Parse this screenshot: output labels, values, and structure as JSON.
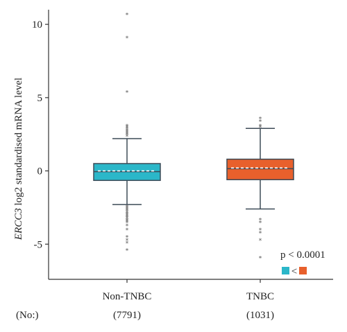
{
  "chart_data": {
    "type": "box",
    "title": "",
    "ylabel_italic": "ERCC3",
    "ylabel_rest": " log2 standardised mRNA level",
    "ylim": [
      -7.4,
      11
    ],
    "yticks": [
      -5,
      0,
      5,
      10
    ],
    "ytick_labels": [
      "-5",
      "0",
      "5",
      "10"
    ],
    "categories": [
      "Non-TNBC",
      "TNBC"
    ],
    "counts_label": "(No:)",
    "counts": [
      "(7791)",
      "(1031)"
    ],
    "series": [
      {
        "category": "Non-TNBC",
        "color": "#2bb7c9",
        "whisker_low": -2.3,
        "q1": -0.65,
        "median": -0.05,
        "q3": 0.5,
        "whisker_high": 2.2,
        "mean": 0.0,
        "outliers": [
          10.7,
          9.1,
          5.4,
          3.1,
          3.0,
          2.9,
          2.8,
          2.7,
          2.6,
          2.5,
          2.4,
          -2.4,
          -2.5,
          -2.6,
          -2.7,
          -2.8,
          -2.9,
          -3.0,
          -3.1,
          -3.2,
          -3.3,
          -3.4,
          -3.5,
          -3.7,
          -4.0,
          -4.5,
          -4.7,
          -4.9,
          -5.4
        ]
      },
      {
        "category": "TNBC",
        "color": "#e8602c",
        "whisker_low": -2.6,
        "q1": -0.6,
        "median": 0.15,
        "q3": 0.8,
        "whisker_high": 2.9,
        "mean": 0.2,
        "outliers": [
          3.6,
          3.4,
          3.1,
          3.0,
          -3.3,
          -3.5,
          -4.0,
          -4.2,
          -4.7,
          -5.9
        ]
      }
    ],
    "annotation": {
      "pvalue": "p < 0.0001",
      "comparison_symbol": "<"
    }
  }
}
